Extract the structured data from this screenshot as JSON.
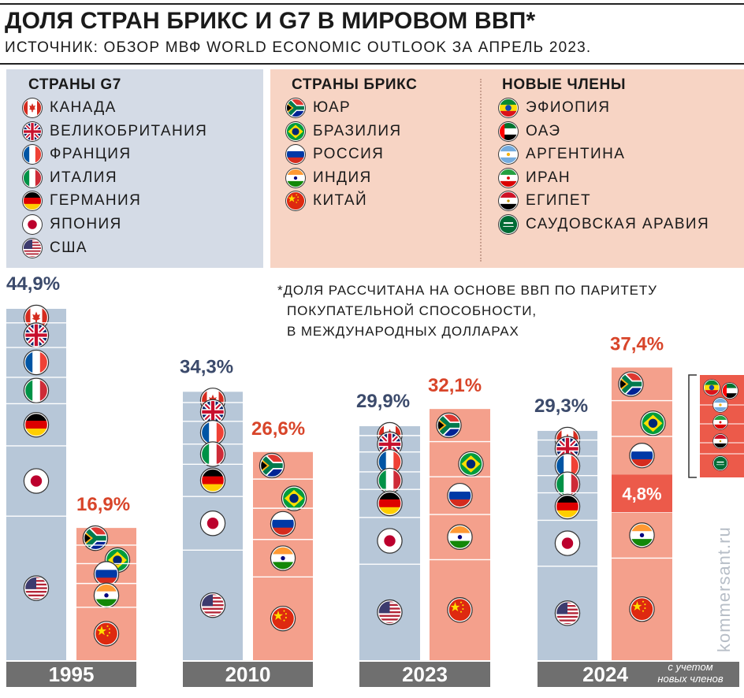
{
  "header": {
    "title": "ДОЛЯ СТРАН БРИКС И G7 В МИРОВОМ ВВП*",
    "subtitle": "ИСТОЧНИК: ОБЗОР МВФ WORLD ECONOMIC OUTLOOK ЗА АПРЕЛЬ 2023."
  },
  "legend": {
    "g7": {
      "heading": "СТРАНЫ G7",
      "items": [
        {
          "label": "КАНАДА",
          "flag": "canada-flag-icon"
        },
        {
          "label": "ВЕЛИКОБРИТАНИЯ",
          "flag": "uk-flag-icon"
        },
        {
          "label": "ФРАНЦИЯ",
          "flag": "france-flag-icon"
        },
        {
          "label": "ИТАЛИЯ",
          "flag": "italy-flag-icon"
        },
        {
          "label": "ГЕРМАНИЯ",
          "flag": "germany-flag-icon"
        },
        {
          "label": "ЯПОНИЯ",
          "flag": "japan-flag-icon"
        },
        {
          "label": "США",
          "flag": "usa-flag-icon"
        }
      ]
    },
    "brics": {
      "heading": "СТРАНЫ БРИКС",
      "items": [
        {
          "label": "ЮАР",
          "flag": "south-africa-flag-icon"
        },
        {
          "label": "БРАЗИЛИЯ",
          "flag": "brazil-flag-icon"
        },
        {
          "label": "РОССИЯ",
          "flag": "russia-flag-icon"
        },
        {
          "label": "ИНДИЯ",
          "flag": "india-flag-icon"
        },
        {
          "label": "КИТАЙ",
          "flag": "china-flag-icon"
        }
      ]
    },
    "new_members": {
      "heading": "НОВЫЕ ЧЛЕНЫ",
      "items": [
        {
          "label": "ЭФИОПИЯ",
          "flag": "ethiopia-flag-icon"
        },
        {
          "label": "ОАЭ",
          "flag": "uae-flag-icon"
        },
        {
          "label": "АРГЕНТИНА",
          "flag": "argentina-flag-icon"
        },
        {
          "label": "ИРАН",
          "flag": "iran-flag-icon"
        },
        {
          "label": "ЕГИПЕТ",
          "flag": "egypt-flag-icon"
        },
        {
          "label": "САУДОВСКАЯ АРАВИЯ",
          "flag": "saudi-arabia-flag-icon"
        }
      ]
    }
  },
  "note": {
    "line1": "*ДОЛЯ РАССЧИТАНА НА ОСНОВЕ ВВП ПО ПАРИТЕТУ",
    "line2": "ПОКУПАТЕЛЬНОЙ СПОСОБНОСТИ,",
    "line3": "В МЕЖДУНАРОДНЫХ ДОЛЛАРАХ"
  },
  "watermark": "kommersant.ru",
  "colors": {
    "g7_bar": "#b7c7d8",
    "g7_label": "#3b4a6b",
    "brics_bar": "#f4a08c",
    "brics_label": "#d8452a",
    "new_members_bar": "#ec5a4a",
    "year_bar": "#6f6f6f"
  },
  "chart_data": {
    "type": "bar",
    "categories": [
      "1995",
      "2010",
      "2023",
      "2024"
    ],
    "category_note": {
      "2024": "с учетом новых членов"
    },
    "series": [
      {
        "name": "СТРАНЫ G7",
        "values": [
          44.9,
          34.3,
          29.9,
          29.3
        ],
        "labels": [
          "44,9%",
          "34,3%",
          "29,9%",
          "29,3%"
        ]
      },
      {
        "name": "СТРАНЫ БРИКС",
        "values": [
          16.9,
          26.6,
          32.1,
          37.4
        ],
        "labels": [
          "16,9%",
          "26,6%",
          "32,1%",
          "37,4%"
        ]
      },
      {
        "name": "НОВЫЕ ЧЛЕНЫ",
        "values": [
          null,
          null,
          null,
          4.8
        ],
        "labels": [
          "",
          "",
          "",
          "4,8%"
        ]
      }
    ],
    "ylim": [
      0,
      50
    ],
    "grid": false,
    "legend": "top"
  }
}
